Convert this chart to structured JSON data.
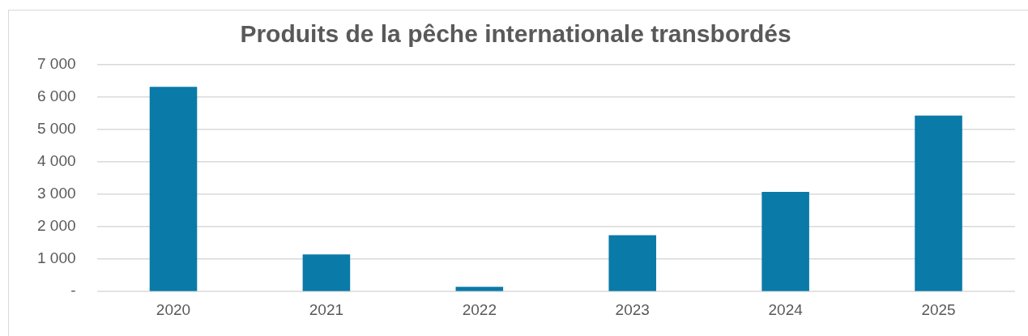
{
  "chart_data": {
    "type": "bar",
    "title": "Produits de la pêche internationale transbordés",
    "categories": [
      "2020",
      "2021",
      "2022",
      "2023",
      "2024",
      "2025"
    ],
    "values": [
      6320,
      1150,
      150,
      1740,
      3080,
      5430
    ],
    "color": "#0a7aa8",
    "ylim": [
      0,
      7000
    ],
    "yticks": [
      {
        "value": 0,
        "label": "-"
      },
      {
        "value": 1000,
        "label": "1 000"
      },
      {
        "value": 2000,
        "label": "2 000"
      },
      {
        "value": 3000,
        "label": "3 000"
      },
      {
        "value": 4000,
        "label": "4 000"
      },
      {
        "value": 5000,
        "label": "5 000"
      },
      {
        "value": 6000,
        "label": "6 000"
      },
      {
        "value": 7000,
        "label": "7 000"
      }
    ],
    "grid": "y",
    "legend": false
  }
}
